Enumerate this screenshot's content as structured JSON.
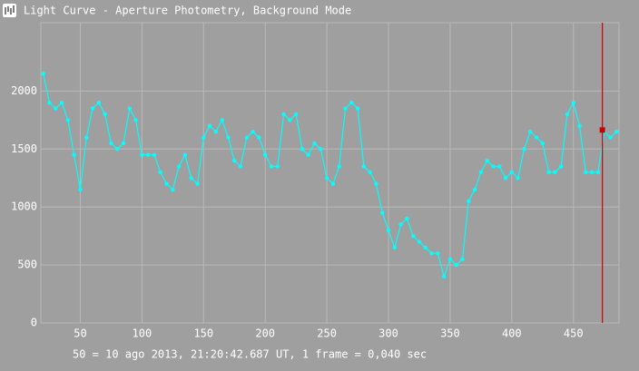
{
  "window": {
    "title": "Light Curve - Aperture Photometry, Background Mode"
  },
  "chart_data": {
    "type": "line",
    "caption": "50 = 10 ago 2013, 21:20:42.687 UT, 1 frame = 0,040 sec",
    "xlim": [
      18,
      487
    ],
    "ylim": [
      0,
      2590
    ],
    "xticks": [
      50,
      100,
      150,
      200,
      250,
      300,
      350,
      400,
      450
    ],
    "yticks": [
      0,
      500,
      1000,
      1500,
      2000
    ],
    "grid": true,
    "series": [
      {
        "color": "#00ffff",
        "x": [
          20,
          25,
          30,
          35,
          40,
          45,
          50,
          55,
          60,
          65,
          70,
          75,
          80,
          85,
          90,
          95,
          100,
          105,
          110,
          115,
          120,
          125,
          130,
          135,
          140,
          145,
          150,
          155,
          160,
          165,
          170,
          175,
          180,
          185,
          190,
          195,
          200,
          205,
          210,
          215,
          220,
          225,
          230,
          235,
          240,
          245,
          250,
          255,
          260,
          265,
          270,
          275,
          280,
          285,
          290,
          295,
          300,
          305,
          310,
          315,
          320,
          325,
          330,
          335,
          340,
          345,
          350,
          355,
          360,
          365,
          370,
          375,
          380,
          385,
          390,
          395,
          400,
          405,
          410,
          415,
          420,
          425,
          430,
          435,
          440,
          445,
          450,
          455,
          460,
          465,
          470,
          475,
          480,
          485
        ],
        "values": [
          2150,
          1900,
          1850,
          1900,
          1750,
          1450,
          1150,
          1600,
          1850,
          1900,
          1800,
          1550,
          1500,
          1550,
          1850,
          1750,
          1450,
          1450,
          1450,
          1300,
          1200,
          1150,
          1350,
          1450,
          1250,
          1200,
          1600,
          1700,
          1650,
          1750,
          1600,
          1400,
          1350,
          1600,
          1650,
          1600,
          1450,
          1350,
          1350,
          1800,
          1750,
          1800,
          1500,
          1450,
          1550,
          1500,
          1250,
          1200,
          1350,
          1850,
          1900,
          1850,
          1350,
          1300,
          1200,
          950,
          800,
          650,
          850,
          900,
          750,
          700,
          650,
          600,
          600,
          400,
          550,
          500,
          550,
          1050,
          1150,
          1300,
          1400,
          1350,
          1350,
          1250,
          1300,
          1250,
          1500,
          1650,
          1600,
          1550,
          1300,
          1300,
          1350,
          1800,
          1900,
          1700,
          1300,
          1300,
          1300,
          1650,
          1600,
          1650
        ]
      }
    ],
    "cursor": {
      "x": 473.5,
      "y": 1664,
      "color": "#d00000"
    }
  }
}
